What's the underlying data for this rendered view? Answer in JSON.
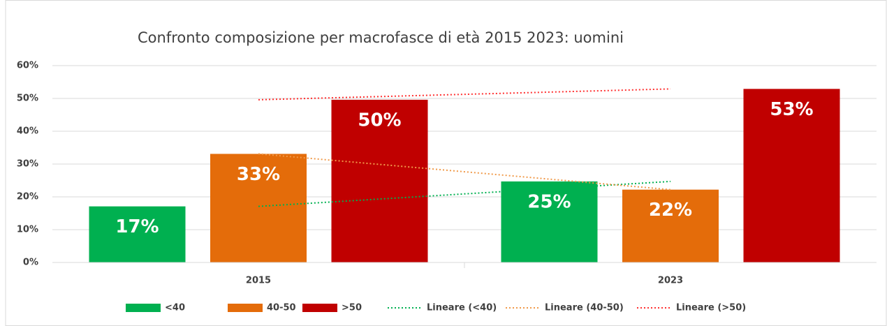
{
  "chart_data": {
    "type": "bar",
    "title": "Confronto composizione per macrofasce di età 2015 2023: uomini",
    "categories": [
      "2015",
      "2023"
    ],
    "series": [
      {
        "name": "<40",
        "color": "#00b050",
        "values": [
          17.1,
          24.7
        ],
        "value_labels": [
          "17%",
          "25%"
        ],
        "trendline": "Lineare (<40)",
        "trendline_color": "#00b050"
      },
      {
        "name": "40-50",
        "color": "#e46c0a",
        "values": [
          33.1,
          22.2
        ],
        "value_labels": [
          "33%",
          "22%"
        ],
        "trendline": "Lineare (40-50)",
        "trendline_color": "#f09a4a"
      },
      {
        "name": ">50",
        "color": "#c00000",
        "values": [
          49.6,
          52.9
        ],
        "value_labels": [
          "50%",
          "53%"
        ],
        "trendline": "Lineare (>50)",
        "trendline_color": "#ff3030"
      }
    ],
    "ylim": [
      0,
      60
    ],
    "yticks": [
      {
        "value": 0,
        "label": "0%"
      },
      {
        "value": 10,
        "label": "10%"
      },
      {
        "value": 20,
        "label": "20%"
      },
      {
        "value": 30,
        "label": "30%"
      },
      {
        "value": 40,
        "label": "40%"
      },
      {
        "value": 50,
        "label": "50%"
      },
      {
        "value": 60,
        "label": "60%"
      }
    ],
    "grid": true,
    "legend": "bottom"
  }
}
